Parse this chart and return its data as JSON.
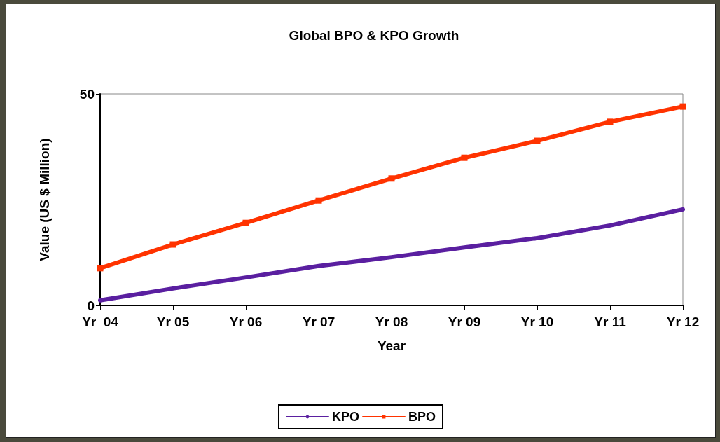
{
  "chart_data": {
    "type": "line",
    "title": "Global BPO & KPO Growth",
    "xlabel": "Year",
    "ylabel": "Value (US $ Million)",
    "categories": [
      "Yr  04",
      "Yr 05",
      "Yr 06",
      "Yr 07",
      "Yr 08",
      "Yr 09",
      "Yr 10",
      "Yr 11",
      "Yr 12"
    ],
    "series": [
      {
        "name": "KPO",
        "color": "#5a1fa0",
        "marker": "none",
        "values": [
          1.2,
          4,
          6.6,
          9.3,
          11.4,
          13.7,
          15.9,
          18.9,
          22.7
        ]
      },
      {
        "name": "BPO",
        "color": "#ff3300",
        "marker": "square",
        "values": [
          8.8,
          14.4,
          19.5,
          24.8,
          30,
          34.9,
          38.9,
          43.4,
          47
        ]
      }
    ],
    "ylim": [
      0,
      50
    ],
    "yticks": [
      0,
      50
    ],
    "grid": false,
    "legend": "bottom"
  }
}
